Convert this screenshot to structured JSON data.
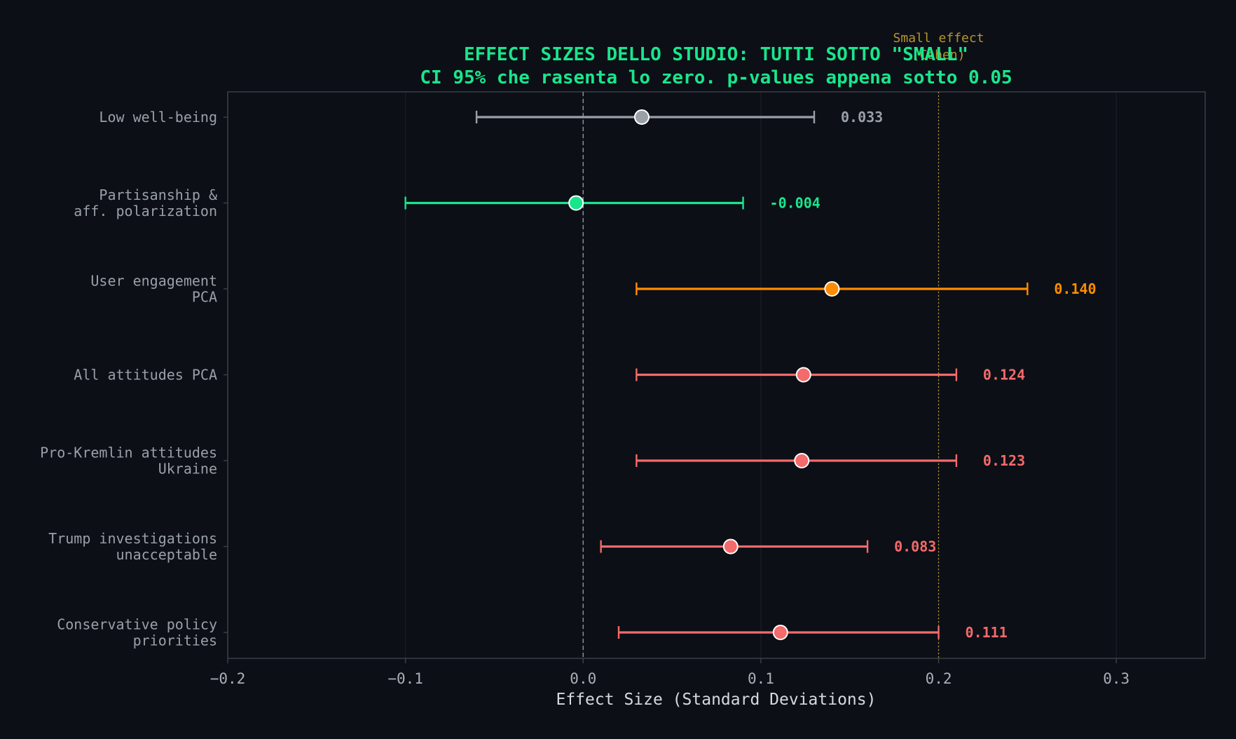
{
  "chart_data": {
    "type": "forest",
    "title": "EFFECT SIZES DELLO STUDIO: TUTTI SOTTO \"SMALL\"",
    "subtitle": "CI 95% che rasenta lo zero. p-values appena sotto 0.05",
    "xlabel": "Effect Size (Standard Deviations)",
    "ylabel": "",
    "xlim": [
      -0.2,
      0.35
    ],
    "xticks": [
      "−0.2",
      "−0.1",
      "0.0",
      "0.1",
      "0.2",
      "0.3"
    ],
    "xtick_values": [
      -0.2,
      -0.1,
      0.0,
      0.1,
      0.2,
      0.3
    ],
    "grid": "vertical",
    "zero_line": 0.0,
    "reference_line": {
      "x": 0.2,
      "label_line1": "Small effect",
      "label_line2": "(Cohen)",
      "color": "#b8962a"
    },
    "items": [
      {
        "label": [
          "Low well-being"
        ],
        "estimate": 0.033,
        "ci": [
          -0.06,
          0.13
        ],
        "value_label": "0.033",
        "color": "#9aa0a8"
      },
      {
        "label": [
          "Partisanship &",
          "aff. polarization"
        ],
        "estimate": -0.004,
        "ci": [
          -0.1,
          0.09
        ],
        "value_label": "-0.004",
        "color": "#19e68c"
      },
      {
        "label": [
          "User engagement",
          "PCA"
        ],
        "estimate": 0.14,
        "ci": [
          0.03,
          0.25
        ],
        "value_label": "0.140",
        "color": "#ff8c00"
      },
      {
        "label": [
          "All attitudes PCA"
        ],
        "estimate": 0.124,
        "ci": [
          0.03,
          0.21
        ],
        "value_label": "0.124",
        "color": "#f56a6a"
      },
      {
        "label": [
          "Pro-Kremlin attitudes",
          "Ukraine"
        ],
        "estimate": 0.123,
        "ci": [
          0.03,
          0.21
        ],
        "value_label": "0.123",
        "color": "#f56a6a"
      },
      {
        "label": [
          "Trump investigations",
          "unacceptable"
        ],
        "estimate": 0.083,
        "ci": [
          0.01,
          0.16
        ],
        "value_label": "0.083",
        "color": "#f56a6a"
      },
      {
        "label": [
          "Conservative policy",
          "priorities"
        ],
        "estimate": 0.111,
        "ci": [
          0.02,
          0.2
        ],
        "value_label": "0.111",
        "color": "#f56a6a"
      }
    ]
  },
  "colors": {
    "background": "#0c0f16",
    "title": "#19e68c",
    "axes": "#3a3f48",
    "grid": "#1a1e26",
    "zero_line": "#8a8f98"
  }
}
